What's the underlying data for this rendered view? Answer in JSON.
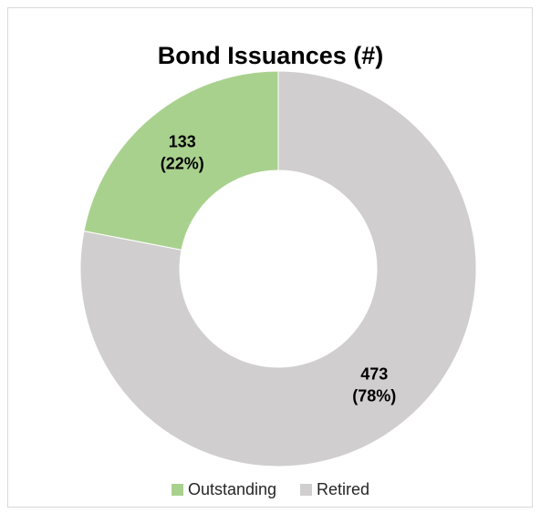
{
  "chart_data": {
    "type": "pie",
    "variant": "doughnut",
    "title": "Bond Issuances (#)",
    "categories": [
      "Outstanding",
      "Retired"
    ],
    "values": [
      133,
      473
    ],
    "percent_labels": [
      "22%",
      "78%"
    ],
    "colors": [
      "#a9d18e",
      "#d0cece"
    ],
    "legend_position": "bottom"
  }
}
